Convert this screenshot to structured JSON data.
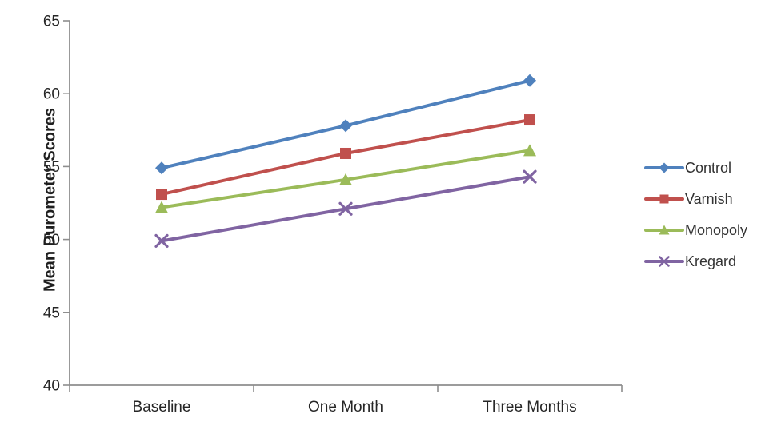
{
  "chart_data": {
    "type": "line",
    "title": "",
    "xlabel": "",
    "ylabel": "Mean Durometer Scores",
    "categories": [
      "Baseline",
      "One Month",
      "Three Months"
    ],
    "series": [
      {
        "name": "Control",
        "marker": "diamond",
        "color": "#4F81BD",
        "values": [
          54.9,
          57.8,
          60.9
        ]
      },
      {
        "name": "Varnish",
        "marker": "square",
        "color": "#C0504D",
        "values": [
          53.1,
          55.9,
          58.2
        ]
      },
      {
        "name": "Monopoly",
        "marker": "triangle",
        "color": "#9BBB59",
        "values": [
          52.2,
          54.1,
          56.1
        ]
      },
      {
        "name": "Kregard",
        "marker": "x",
        "color": "#8064A2",
        "values": [
          49.9,
          52.1,
          54.3
        ]
      }
    ],
    "ylim": [
      40,
      65
    ],
    "yticks": [
      40,
      45,
      50,
      55,
      60,
      65
    ],
    "grid": false,
    "legend_position": "right",
    "axis_color": "#8E8E8E",
    "text_color": "#262626"
  }
}
